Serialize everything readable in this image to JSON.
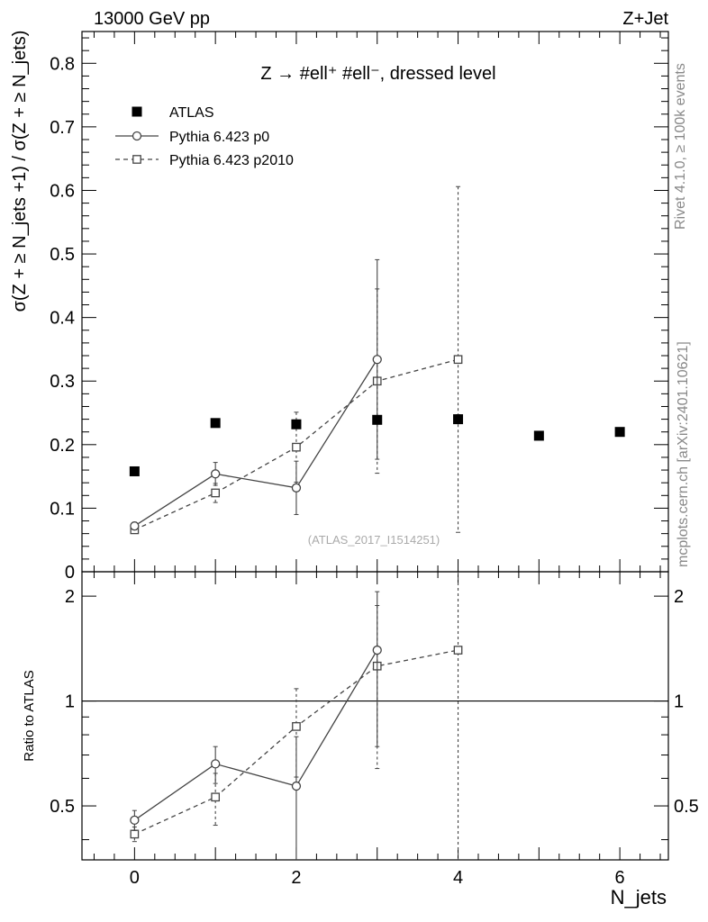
{
  "header": {
    "left": "13000 GeV pp",
    "right": "Z+Jet"
  },
  "side_labels": {
    "rivet": "Rivet 4.1.0, ≥ 100k events",
    "mcplots": "mcplots.cern.ch [arXiv:2401.10621]"
  },
  "chart_data": [
    {
      "type": "scatter",
      "panel": "main",
      "title": "Z → #ell⁺ #ell⁻, dressed level",
      "analysis_label": "(ATLAS_2017_I1514251)",
      "ylabel": "σ(Z + ≥ N_jets +1) / σ(Z + ≥ N_jets)",
      "xlabel": "",
      "xlim": [
        -0.65,
        6.6
      ],
      "ylim": [
        0,
        0.85
      ],
      "x_ticks": [
        0,
        2,
        4,
        6
      ],
      "y_ticks": [
        0,
        0.1,
        0.2,
        0.3,
        0.4,
        0.5,
        0.6,
        0.7,
        0.8
      ],
      "y_tick_labels": [
        "0",
        "0.1",
        "0.2",
        "0.3",
        "0.4",
        "0.5",
        "0.6",
        "0.7",
        "0.8"
      ],
      "legend_position": "top-left",
      "series": [
        {
          "name": "ATLAS",
          "style": "filled-square",
          "x": [
            0,
            1,
            2,
            3,
            4,
            5,
            6
          ],
          "y": [
            0.158,
            0.234,
            0.232,
            0.239,
            0.24,
            0.214,
            0.22
          ],
          "err_lo": [
            0.004,
            0.004,
            0.005,
            0.006,
            0.007,
            0.006,
            0.006
          ],
          "err_hi": [
            0.004,
            0.004,
            0.005,
            0.006,
            0.007,
            0.006,
            0.006
          ]
        },
        {
          "name": "Pythia 6.423 p0",
          "style": "open-circle-solid",
          "x": [
            0,
            1,
            2,
            3
          ],
          "y": [
            0.072,
            0.154,
            0.132,
            0.334
          ],
          "err_lo": [
            0.006,
            0.018,
            0.042,
            0.157
          ],
          "err_hi": [
            0.006,
            0.018,
            0.042,
            0.157
          ]
        },
        {
          "name": "Pythia 6.423 p2010",
          "style": "open-square-dashed",
          "x": [
            0,
            1,
            2,
            3,
            4
          ],
          "y": [
            0.066,
            0.124,
            0.196,
            0.3,
            0.334
          ],
          "err_lo": [
            0.005,
            0.015,
            0.055,
            0.145,
            0.272
          ],
          "err_hi": [
            0.005,
            0.015,
            0.055,
            0.145,
            0.272
          ]
        }
      ]
    },
    {
      "type": "scatter",
      "panel": "ratio",
      "ylabel": "Ratio to ATLAS",
      "xlabel": "N_jets",
      "xlim": [
        -0.65,
        6.6
      ],
      "ylim": [
        0.35,
        2.35
      ],
      "y_scale": "log",
      "x_ticks": [
        0,
        2,
        4,
        6
      ],
      "y_ticks": [
        0.5,
        1,
        2
      ],
      "y_tick_labels": [
        "0.5",
        "1",
        "2"
      ],
      "reference_line": 1,
      "series": [
        {
          "name": "Pythia 6.423 p0",
          "style": "open-circle-solid",
          "x": [
            0,
            1,
            2,
            3
          ],
          "y": [
            0.455,
            0.66,
            0.57,
            1.4
          ],
          "err_lo": [
            0.03,
            0.08,
            0.22,
            0.66
          ],
          "err_hi": [
            0.03,
            0.08,
            0.22,
            0.66
          ]
        },
        {
          "name": "Pythia 6.423 p2010",
          "style": "open-square-dashed",
          "x": [
            0,
            1,
            2,
            3,
            4
          ],
          "y": [
            0.415,
            0.53,
            0.845,
            1.26,
            1.4
          ],
          "err_lo": [
            0.02,
            0.09,
            0.24,
            0.62,
            1.2
          ],
          "err_hi": [
            0.02,
            0.09,
            0.24,
            0.62,
            1.2
          ]
        }
      ]
    }
  ]
}
